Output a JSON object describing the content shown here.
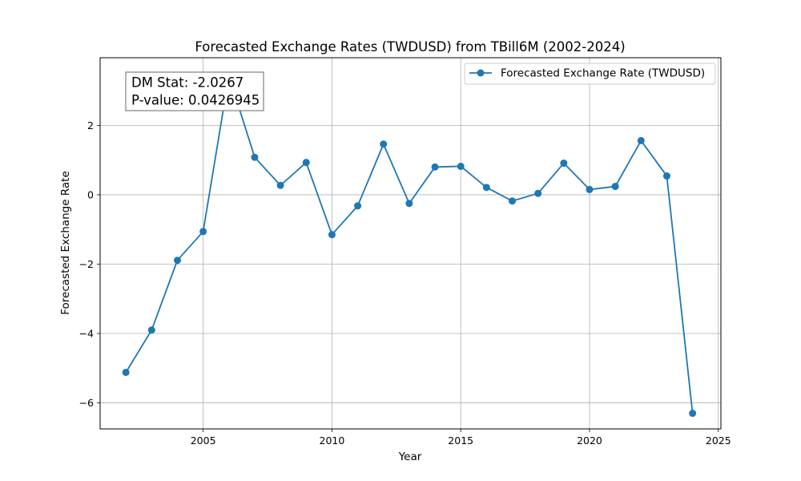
{
  "chart_data": {
    "type": "line",
    "title": "Forecasted Exchange Rates (TWDUSD) from TBill6M (2002-2024)",
    "xlabel": "Year",
    "ylabel": "Forecasted Exchange Rate",
    "xlim": [
      2001.0,
      2025.1
    ],
    "ylim": [
      -6.75,
      3.95
    ],
    "xticks": [
      2005,
      2010,
      2015,
      2020,
      2025
    ],
    "yticks": [
      -6,
      -4,
      -2,
      0,
      2
    ],
    "xtick_labels": [
      "2005",
      "2010",
      "2015",
      "2020",
      "2025"
    ],
    "ytick_labels": [
      "−6",
      "−4",
      "−2",
      "0",
      "2"
    ],
    "grid": true,
    "legend_position": "top-right",
    "color": "#1f77b4",
    "series": [
      {
        "name": "Forecasted Exchange Rate (TWDUSD)",
        "x": [
          2002,
          2003,
          2004,
          2005,
          2006,
          2007,
          2008,
          2009,
          2010,
          2011,
          2012,
          2013,
          2014,
          2015,
          2016,
          2017,
          2018,
          2019,
          2020,
          2021,
          2022,
          2023,
          2024
        ],
        "y": [
          -5.12,
          -3.9,
          -1.89,
          -1.06,
          3.43,
          1.08,
          0.27,
          0.93,
          -1.15,
          -0.32,
          1.46,
          -0.25,
          0.8,
          0.82,
          0.21,
          -0.18,
          0.04,
          0.91,
          0.15,
          0.24,
          1.56,
          0.54,
          -6.3
        ]
      }
    ],
    "annotation": {
      "line1": "DM Stat: -2.0267",
      "line2": "P-value: 0.0426945"
    }
  }
}
